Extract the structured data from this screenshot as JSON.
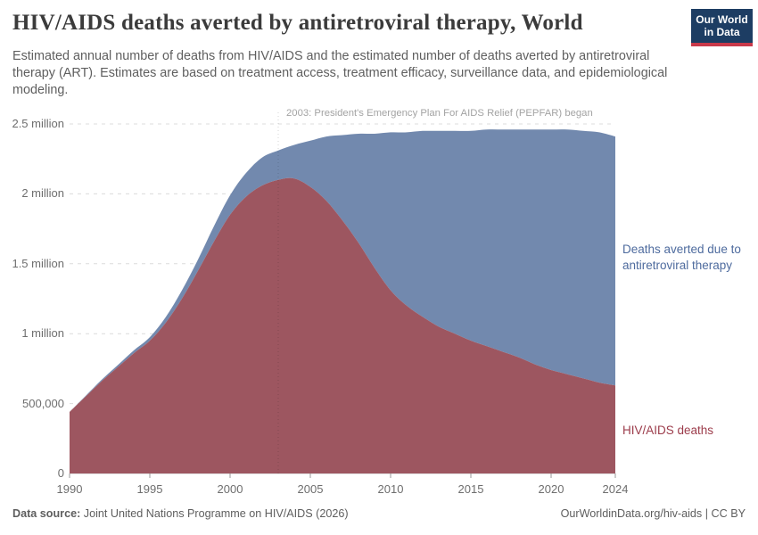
{
  "header": {
    "title": "HIV/AIDS deaths averted by antiretroviral therapy, World",
    "subtitle": "Estimated annual number of deaths from HIV/AIDS and the estimated number of deaths averted by antiretroviral therapy (ART). Estimates are based on treatment access, treatment efficacy, surveillance data, and epidemiological modeling.",
    "logo": {
      "line1": "Our World",
      "line2": "in Data"
    }
  },
  "chart_data": {
    "type": "area",
    "stacked": true,
    "title": "HIV/AIDS deaths averted by antiretroviral therapy, World",
    "xlabel": "",
    "ylabel": "",
    "ylim": [
      0,
      2500000
    ],
    "grid": "dashed-horizontal",
    "x": [
      1990,
      1991,
      1992,
      1993,
      1994,
      1995,
      1996,
      1997,
      1998,
      1999,
      2000,
      2001,
      2002,
      2003,
      2004,
      2005,
      2006,
      2007,
      2008,
      2009,
      2010,
      2011,
      2012,
      2013,
      2014,
      2015,
      2016,
      2017,
      2018,
      2019,
      2020,
      2021,
      2022,
      2023,
      2024
    ],
    "series": [
      {
        "name": "HIV/AIDS deaths",
        "color": "#9d5660",
        "values": [
          440000,
          550000,
          660000,
          760000,
          860000,
          950000,
          1080000,
          1250000,
          1450000,
          1660000,
          1850000,
          1980000,
          2060000,
          2100000,
          2110000,
          2050000,
          1950000,
          1810000,
          1650000,
          1470000,
          1310000,
          1200000,
          1120000,
          1050000,
          1000000,
          950000,
          910000,
          870000,
          830000,
          780000,
          740000,
          710000,
          680000,
          650000,
          630000
        ]
      },
      {
        "name": "Deaths averted due to antiretroviral therapy",
        "color": "#7289ae",
        "values": [
          0,
          5000,
          10000,
          15000,
          20000,
          25000,
          40000,
          60000,
          80000,
          110000,
          140000,
          170000,
          200000,
          210000,
          240000,
          330000,
          460000,
          610000,
          780000,
          960000,
          1130000,
          1240000,
          1330000,
          1400000,
          1450000,
          1500000,
          1550000,
          1590000,
          1630000,
          1680000,
          1720000,
          1750000,
          1770000,
          1790000,
          1780000
        ]
      }
    ],
    "y_ticks": [
      {
        "value": 0,
        "label": "0"
      },
      {
        "value": 500000,
        "label": "500,000"
      },
      {
        "value": 1000000,
        "label": "1 million"
      },
      {
        "value": 1500000,
        "label": "1.5 million"
      },
      {
        "value": 2000000,
        "label": "2 million"
      },
      {
        "value": 2500000,
        "label": "2.5 million"
      }
    ],
    "x_ticks": [
      1990,
      1995,
      2000,
      2005,
      2010,
      2015,
      2020,
      2024
    ],
    "annotation": {
      "text": "2003: President's Emergency Plan For AIDS Relief (PEPFAR) began",
      "year": 2003
    },
    "legend_position": "right-edge-labels"
  },
  "labels": {
    "averted": "Deaths averted due to antiretroviral therapy",
    "deaths": "HIV/AIDS deaths"
  },
  "footer": {
    "datasource_label": "Data source:",
    "datasource_text": " Joint United Nations Programme on HIV/AIDS (2026)",
    "link": "OurWorldinData.org/hiv-aids | CC BY"
  },
  "colors": {
    "area_deaths": "#9d5660",
    "area_averted": "#7289ae",
    "gridline": "#dcdcdc",
    "axis_text": "#6e6e6e",
    "logo_bg": "#1d3d63",
    "logo_bar": "#c9394a"
  }
}
